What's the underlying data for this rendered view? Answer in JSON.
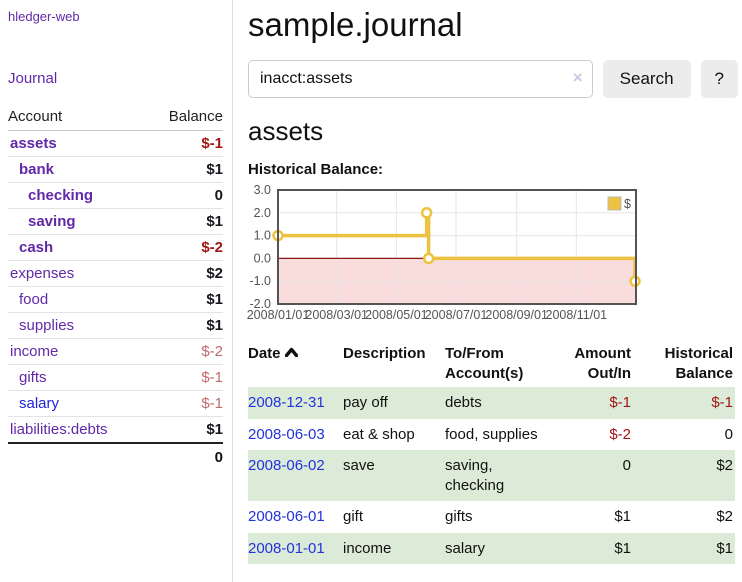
{
  "app": {
    "title": "hledger-web"
  },
  "sidebar": {
    "nav_journal": "Journal",
    "table": {
      "col_account": "Account",
      "col_balance": "Balance",
      "rows": [
        {
          "name": "assets",
          "indent": 1,
          "bold": true,
          "link": "purple",
          "balance": "$-1",
          "balance_style": "neg"
        },
        {
          "name": "bank",
          "indent": 2,
          "bold": true,
          "link": "purple",
          "balance": "$1",
          "balance_style": "pos"
        },
        {
          "name": "checking",
          "indent": 3,
          "bold": true,
          "link": "purple",
          "balance": "0",
          "balance_style": "pos"
        },
        {
          "name": "saving",
          "indent": 3,
          "bold": true,
          "link": "purple",
          "balance": "$1",
          "balance_style": "pos"
        },
        {
          "name": "cash",
          "indent": 2,
          "bold": true,
          "link": "purple",
          "balance": "$-2",
          "balance_style": "neg"
        },
        {
          "name": "expenses",
          "indent": 1,
          "bold": false,
          "link": "purple",
          "balance": "$2",
          "balance_style": "pos"
        },
        {
          "name": "food",
          "indent": 2,
          "bold": false,
          "link": "purple",
          "balance": "$1",
          "balance_style": "pos"
        },
        {
          "name": "supplies",
          "indent": 2,
          "bold": false,
          "link": "purple",
          "balance": "$1",
          "balance_style": "pos"
        },
        {
          "name": "income",
          "indent": 1,
          "bold": false,
          "link": "purple",
          "balance": "$-2",
          "balance_style": "neg-soft"
        },
        {
          "name": "gifts",
          "indent": 2,
          "bold": false,
          "link": "purple",
          "balance": "$-1",
          "balance_style": "neg-soft"
        },
        {
          "name": "salary",
          "indent": 2,
          "bold": false,
          "link": "blue",
          "balance": "$-1",
          "balance_style": "neg-soft"
        },
        {
          "name": "liabilities:debts",
          "indent": 1,
          "bold": false,
          "link": "purple",
          "balance": "$1",
          "balance_style": "pos"
        }
      ],
      "total": "0"
    }
  },
  "header": {
    "title": "sample.journal"
  },
  "search": {
    "value": "inacct:assets",
    "clear_icon": "×",
    "button": "Search",
    "help": "?"
  },
  "account_page": {
    "heading": "assets",
    "chart_label": "Historical Balance:"
  },
  "chart_data": {
    "type": "line",
    "title": "Historical Balance:",
    "x_start": "2008-01-01",
    "x_span_days": 366,
    "ylim": [
      -2,
      3
    ],
    "y_ticks": [
      3.0,
      2.0,
      1.0,
      0.0,
      -1.0,
      -2.0
    ],
    "x_ticks": [
      {
        "label": "2008/01/01",
        "date": "2008-01-01"
      },
      {
        "label": "2008/03/01",
        "date": "2008-03-01"
      },
      {
        "label": "2008/05/01",
        "date": "2008-05-01"
      },
      {
        "label": "2008/07/01",
        "date": "2008-07-01"
      },
      {
        "label": "2008/09/01",
        "date": "2008-09-01"
      },
      {
        "label": "2008/11/01",
        "date": "2008-11-01"
      }
    ],
    "series": [
      {
        "name": "$",
        "color": "#edc240",
        "points": [
          {
            "date": "2008-01-01",
            "value": 1
          },
          {
            "date": "2008-06-01",
            "value": 2
          },
          {
            "date": "2008-06-03",
            "value": 0
          },
          {
            "date": "2008-12-31",
            "value": -1
          }
        ]
      }
    ],
    "legend_position": "top-right",
    "negative_fill": "#f9dcdc",
    "zero_line_color": "#8b1a1a",
    "grid_color": "#e6e6e6",
    "border_color": "#545454",
    "tick_color": "#545454"
  },
  "register": {
    "columns": [
      {
        "label": "Date",
        "sort": "asc"
      },
      {
        "label": "Description"
      },
      {
        "label": "To/From Account(s)"
      },
      {
        "label": "Amount Out/In"
      },
      {
        "label": "Historical Balance"
      }
    ],
    "rows": [
      {
        "date": "2008-12-31",
        "description": "pay off",
        "accounts": "debts",
        "amount": "$-1",
        "amount_negative": true,
        "balance": "$-1",
        "balance_negative": true
      },
      {
        "date": "2008-06-03",
        "description": "eat & shop",
        "accounts": "food, supplies",
        "amount": "$-2",
        "amount_negative": true,
        "balance": "0",
        "balance_negative": false
      },
      {
        "date": "2008-06-02",
        "description": "save",
        "accounts": "saving, checking",
        "amount": "0",
        "amount_negative": false,
        "balance": "$2",
        "balance_negative": false
      },
      {
        "date": "2008-06-01",
        "description": "gift",
        "accounts": "gifts",
        "amount": "$1",
        "amount_negative": false,
        "balance": "$2",
        "balance_negative": false
      },
      {
        "date": "2008-01-01",
        "description": "income",
        "accounts": "salary",
        "amount": "$1",
        "amount_negative": false,
        "balance": "$1",
        "balance_negative": false
      }
    ]
  }
}
